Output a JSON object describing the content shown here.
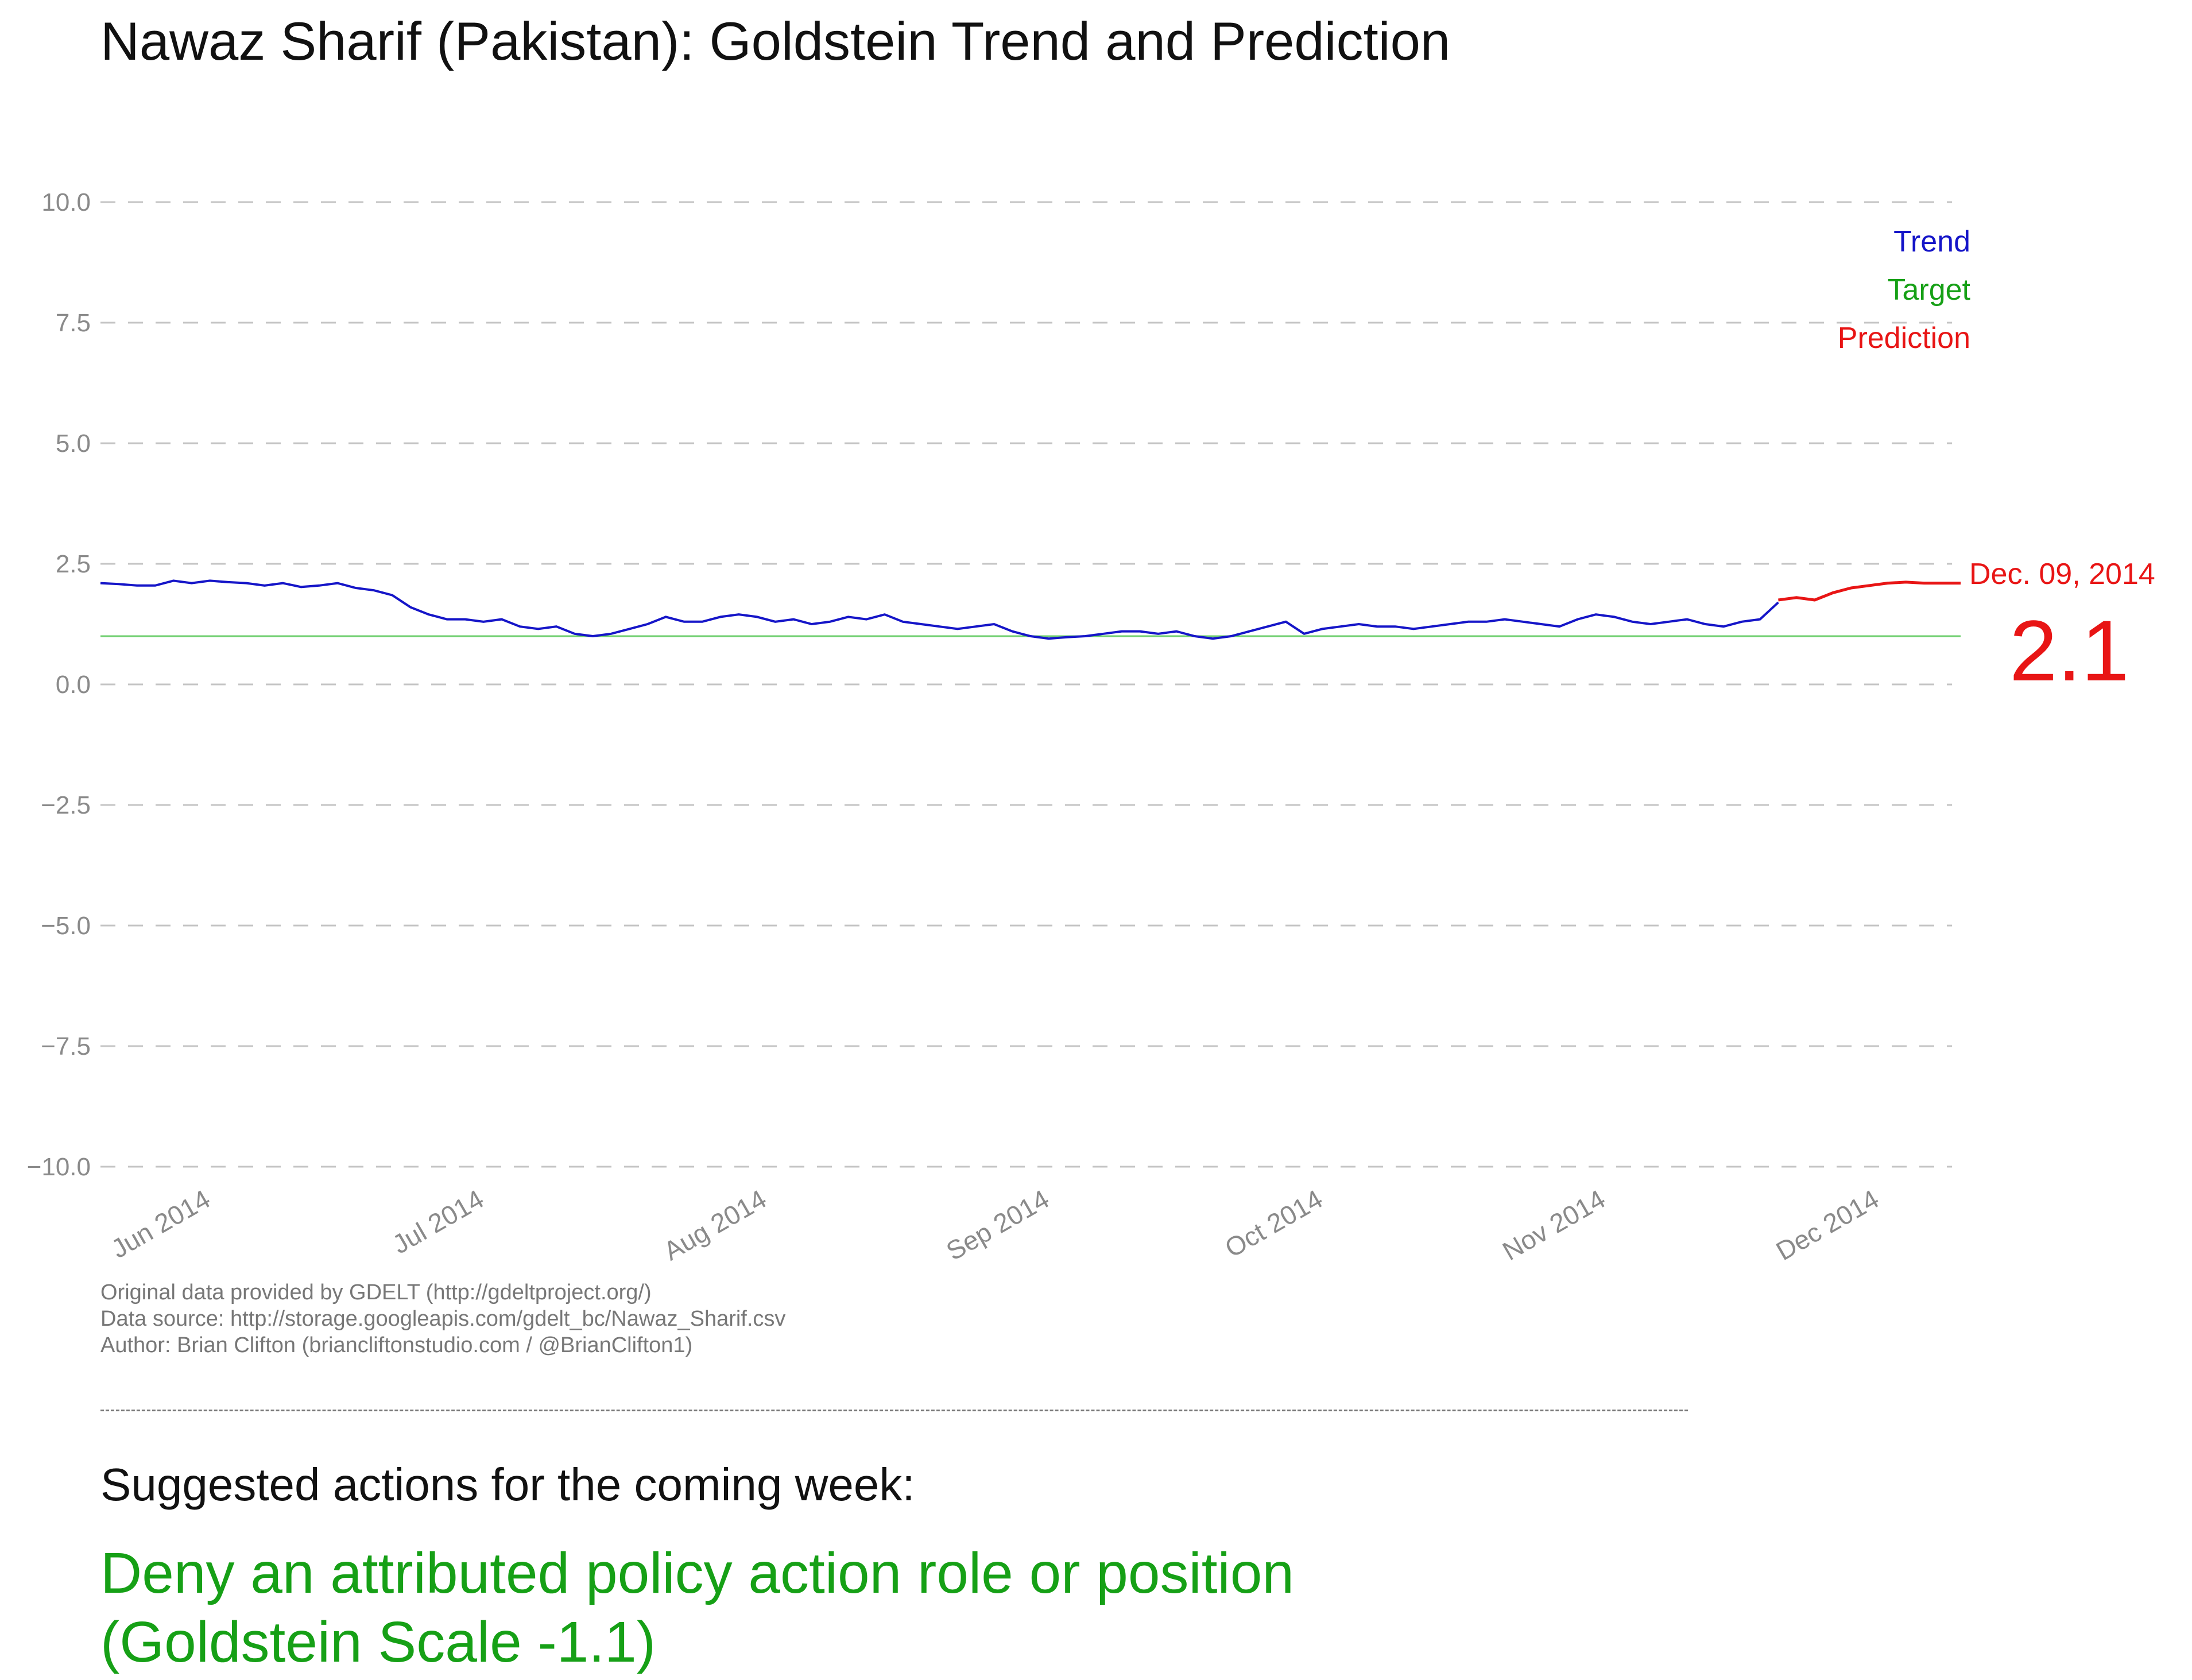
{
  "chart_data": {
    "type": "line",
    "title": "Nawaz Sharif (Pakistan): Goldstein Trend and Prediction",
    "xlabel": "",
    "ylabel": "",
    "ylim": [
      -10.0,
      10.0
    ],
    "yticks": [
      "10.0",
      "7.5",
      "5.0",
      "2.5",
      "0.0",
      "−2.5",
      "−5.0",
      "−7.5",
      "−10.0"
    ],
    "ytick_values": [
      10.0,
      7.5,
      5.0,
      2.5,
      0.0,
      -2.5,
      -5.0,
      -7.5,
      -10.0
    ],
    "xticks": [
      "Jun 2014",
      "Jul 2014",
      "Aug 2014",
      "Sep 2014",
      "Oct 2014",
      "Nov 2014",
      "Dec 2014"
    ],
    "xtick_days": [
      0,
      30,
      61,
      92,
      122,
      153,
      183
    ],
    "xlim_days": [
      -11,
      193
    ],
    "grid": true,
    "legend": {
      "position": "top-right",
      "entries": [
        "Trend",
        "Target",
        "Prediction"
      ]
    },
    "target": 1.0,
    "series": [
      {
        "name": "Trend",
        "color": "#1515c8",
        "days": [
          -11,
          -9,
          -7,
          -5,
          -3,
          -1,
          1,
          3,
          5,
          7,
          9,
          11,
          13,
          15,
          17,
          19,
          21,
          23,
          25,
          27,
          29,
          31,
          33,
          35,
          37,
          39,
          41,
          43,
          45,
          47,
          49,
          51,
          53,
          55,
          57,
          59,
          61,
          63,
          65,
          67,
          69,
          71,
          73,
          75,
          77,
          79,
          81,
          83,
          85,
          87,
          89,
          91,
          93,
          95,
          97,
          99,
          101,
          103,
          105,
          107,
          109,
          111,
          113,
          115,
          117,
          119,
          121,
          123,
          125,
          127,
          129,
          131,
          133,
          135,
          137,
          139,
          141,
          143,
          145,
          147,
          149,
          151,
          153,
          155,
          157,
          159,
          161,
          163,
          165,
          167,
          169,
          171,
          173
        ],
        "values": [
          2.1,
          2.08,
          2.05,
          2.05,
          2.15,
          2.1,
          2.15,
          2.12,
          2.1,
          2.05,
          2.1,
          2.02,
          2.05,
          2.1,
          2.0,
          1.95,
          1.85,
          1.6,
          1.45,
          1.35,
          1.35,
          1.3,
          1.35,
          1.2,
          1.15,
          1.2,
          1.05,
          1.0,
          1.05,
          1.15,
          1.25,
          1.4,
          1.3,
          1.3,
          1.4,
          1.45,
          1.4,
          1.3,
          1.35,
          1.25,
          1.3,
          1.4,
          1.35,
          1.45,
          1.3,
          1.25,
          1.2,
          1.15,
          1.2,
          1.25,
          1.1,
          1.0,
          0.95,
          0.98,
          1.0,
          1.05,
          1.1,
          1.1,
          1.05,
          1.1,
          1.0,
          0.95,
          1.0,
          1.1,
          1.2,
          1.3,
          1.05,
          1.15,
          1.2,
          1.25,
          1.2,
          1.2,
          1.15,
          1.2,
          1.25,
          1.3,
          1.3,
          1.35,
          1.3,
          1.25,
          1.2,
          1.35,
          1.45,
          1.4,
          1.3,
          1.25,
          1.3,
          1.35,
          1.25,
          1.2,
          1.3,
          1.35,
          1.7
        ]
      },
      {
        "name": "Prediction",
        "color": "#e81515",
        "days": [
          173,
          175,
          177,
          179,
          181,
          183,
          185,
          187,
          189,
          191,
          193
        ],
        "values": [
          1.75,
          1.8,
          1.75,
          1.9,
          2.0,
          2.05,
          2.1,
          2.12,
          2.1,
          2.1,
          2.1
        ]
      }
    ],
    "annotations": [
      {
        "label": "Dec. 09, 2014",
        "day": 193,
        "value": 2.1
      },
      {
        "label": "2.1",
        "day": 193,
        "value": 2.1
      }
    ]
  },
  "credits": [
    "Original data provided by GDELT (http://gdeltproject.org/)",
    "Data source: http://storage.googleapis.com/gdelt_bc/Nawaz_Sharif.csv",
    "Author: Brian Clifton (briancliftonstudio.com / @BrianClifton1)"
  ],
  "suggested": {
    "heading": "Suggested actions for the coming week:",
    "action_lines": [
      "Deny an attributed policy action role or position",
      "(Goldstein Scale -1.1)"
    ],
    "action_color": "#16a016"
  }
}
